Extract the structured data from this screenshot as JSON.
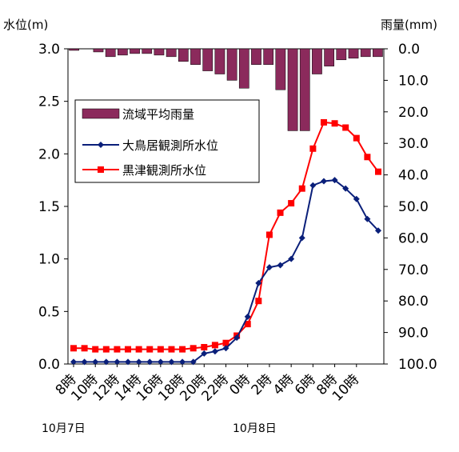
{
  "chart_data": {
    "type": "bar+line",
    "title": "",
    "ylabel_left": "水位(m)",
    "ylabel_right": "雨量(mm)",
    "ylim_left": [
      0,
      3.0
    ],
    "ylim_right": [
      0,
      100.0
    ],
    "right_axis_inverted": true,
    "y_ticks_left": [
      "3.0",
      "2.5",
      "2.0",
      "1.5",
      "1.0",
      "0.5",
      "0.0"
    ],
    "y_ticks_right": [
      "0.0",
      "10.0",
      "20.0",
      "30.0",
      "40.0",
      "50.0",
      "60.0",
      "70.0",
      "80.0",
      "90.0",
      "100.0"
    ],
    "x_tick_labels": [
      "8時",
      "10時",
      "12時",
      "14時",
      "16時",
      "18時",
      "20時",
      "22時",
      "0時",
      "2時",
      "4時",
      "6時",
      "8時",
      "10時"
    ],
    "date_labels": [
      "10月7日",
      "10月8日"
    ],
    "legend_position": "upper-left",
    "grid": false,
    "series": [
      {
        "name": "流域平均雨量",
        "kind": "bar",
        "axis": "right",
        "color": "#8b2a5c",
        "values": [
          0.5,
          0,
          1.0,
          2.5,
          2.0,
          1.5,
          1.5,
          2.0,
          2.5,
          4.0,
          5.0,
          7.0,
          8.0,
          10.0,
          12.5,
          5.0,
          5.0,
          13.0,
          26.0,
          26.0,
          8.0,
          5.5,
          3.5,
          3.0,
          2.5,
          2.5
        ]
      },
      {
        "name": "大鳥居観測所水位",
        "kind": "line",
        "axis": "left",
        "color": "#0a1f7a",
        "marker": "diamond",
        "values": [
          0.02,
          0.02,
          0.02,
          0.02,
          0.02,
          0.02,
          0.02,
          0.02,
          0.02,
          0.02,
          0.02,
          0.02,
          0.1,
          0.12,
          0.15,
          0.25,
          0.45,
          0.77,
          0.92,
          0.94,
          1.0,
          1.2,
          1.7,
          1.74,
          1.75,
          1.67,
          1.57,
          1.38,
          1.27
        ]
      },
      {
        "name": "黒津観測所水位",
        "kind": "line",
        "axis": "left",
        "color": "#ff0000",
        "marker": "square",
        "values": [
          0.15,
          0.15,
          0.14,
          0.14,
          0.14,
          0.14,
          0.14,
          0.14,
          0.14,
          0.14,
          0.14,
          0.15,
          0.16,
          0.18,
          0.2,
          0.27,
          0.38,
          0.6,
          1.23,
          1.44,
          1.53,
          1.67,
          2.05,
          2.3,
          2.29,
          2.25,
          2.15,
          1.97,
          1.83
        ]
      }
    ]
  }
}
